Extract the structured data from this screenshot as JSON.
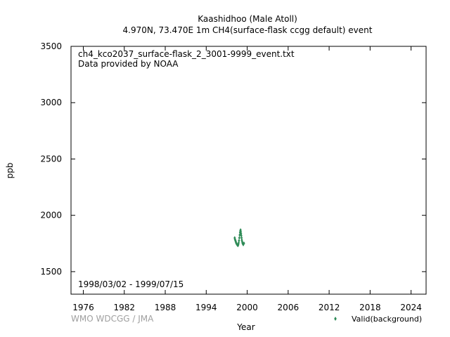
{
  "chart_data": {
    "type": "scatter",
    "title": "Kaashidhoo (Male Atoll)",
    "subtitle": "4.970N, 73.470E 1m    CH4(surface-flask ccgg default) event",
    "xlabel": "Year",
    "ylabel": "ppb",
    "xlim": [
      1974.2,
      2026.2
    ],
    "ylim": [
      1300,
      3500
    ],
    "x_ticks": [
      1976,
      1982,
      1988,
      1994,
      2000,
      2006,
      2012,
      2018,
      2024
    ],
    "y_ticks": [
      1500,
      2000,
      2500,
      3000,
      3500
    ],
    "file_label": "ch4_kco2037_surface-flask_2_3001-9999_event.txt",
    "provider_label": "Data provided by NOAA",
    "date_range": "1998/03/02 - 1999/07/15",
    "credit": "WMO WDCGG / JMA",
    "legend_position": "bottom-right",
    "grid": false,
    "series": [
      {
        "name": "Valid(background)",
        "color": "#2e8b57",
        "points": [
          [
            1998.17,
            1800
          ],
          [
            1998.2,
            1790
          ],
          [
            1998.24,
            1782
          ],
          [
            1998.28,
            1775
          ],
          [
            1998.32,
            1768
          ],
          [
            1998.36,
            1760
          ],
          [
            1998.4,
            1752
          ],
          [
            1998.45,
            1748
          ],
          [
            1998.5,
            1742
          ],
          [
            1998.55,
            1738
          ],
          [
            1998.6,
            1735
          ],
          [
            1998.65,
            1732
          ],
          [
            1998.7,
            1740
          ],
          [
            1998.75,
            1755
          ],
          [
            1998.8,
            1775
          ],
          [
            1998.85,
            1800
          ],
          [
            1998.9,
            1825
          ],
          [
            1998.95,
            1848
          ],
          [
            1999.0,
            1862
          ],
          [
            1999.03,
            1870
          ],
          [
            1999.06,
            1855
          ],
          [
            1999.1,
            1838
          ],
          [
            1999.14,
            1820
          ],
          [
            1999.18,
            1800
          ],
          [
            1999.22,
            1780
          ],
          [
            1999.27,
            1765
          ],
          [
            1999.32,
            1752
          ],
          [
            1999.38,
            1745
          ],
          [
            1999.43,
            1740
          ],
          [
            1999.48,
            1748
          ],
          [
            1999.53,
            1752
          ]
        ]
      }
    ]
  }
}
